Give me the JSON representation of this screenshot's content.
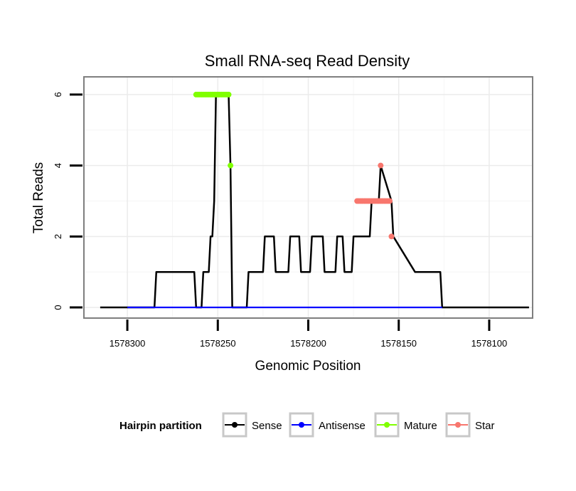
{
  "chart_data": {
    "type": "line",
    "title": "Small RNA-seq Read Density",
    "xlabel": "Genomic Position",
    "ylabel": "Total Reads",
    "x_reversed": true,
    "xlim": [
      1578324,
      1578076
    ],
    "ylim": [
      -0.3,
      6.5
    ],
    "x_ticks": [
      1578300,
      1578250,
      1578200,
      1578150,
      1578100
    ],
    "x_tick_labels": [
      "1578300",
      "1578250",
      "1578200",
      "1578150",
      "1578100"
    ],
    "y_ticks": [
      0,
      2,
      4,
      6
    ],
    "y_tick_labels": [
      "0",
      "2",
      "4",
      "6"
    ],
    "grid": true,
    "legend": {
      "title": "Hairpin partition",
      "position": "bottom",
      "entries": [
        "Sense",
        "Antisense",
        "Mature",
        "Star"
      ]
    },
    "series": [
      {
        "name": "Sense",
        "color": "#000000",
        "x": [
          1578315,
          1578285,
          1578284,
          1578263,
          1578262,
          1578259,
          1578258,
          1578255,
          1578254,
          1578253,
          1578252,
          1578251,
          1578244,
          1578243,
          1578242,
          1578241,
          1578234,
          1578233,
          1578225,
          1578224,
          1578219,
          1578218,
          1578211,
          1578210,
          1578205,
          1578204,
          1578199,
          1578198,
          1578192,
          1578191,
          1578185,
          1578184,
          1578181,
          1578180,
          1578176,
          1578175,
          1578166,
          1578165,
          1578161,
          1578160,
          1578154,
          1578153,
          1578141,
          1578140,
          1578127,
          1578126,
          1578078
        ],
        "y": [
          0,
          0,
          1,
          1,
          0,
          0,
          1,
          1,
          2,
          2,
          3,
          6,
          6,
          4,
          0,
          0,
          0,
          1,
          1,
          2,
          2,
          1,
          1,
          2,
          2,
          1,
          1,
          2,
          2,
          1,
          1,
          2,
          2,
          1,
          1,
          2,
          2,
          3,
          3,
          4,
          3,
          2,
          1,
          1,
          1,
          0,
          0
        ]
      },
      {
        "name": "Antisense",
        "color": "#0000ff",
        "x": [
          1578300,
          1578126
        ],
        "y": [
          0,
          0
        ]
      },
      {
        "name": "Mature",
        "color": "#80ff00",
        "x": [
          1578262,
          1578261,
          1578260,
          1578259,
          1578258,
          1578257,
          1578256,
          1578255,
          1578254,
          1578253,
          1578252,
          1578251,
          1578250,
          1578249,
          1578248,
          1578247,
          1578246,
          1578245,
          1578244,
          1578243
        ],
        "y": [
          6,
          6,
          6,
          6,
          6,
          6,
          6,
          6,
          6,
          6,
          6,
          6,
          6,
          6,
          6,
          6,
          6,
          6,
          6,
          4
        ]
      },
      {
        "name": "Star",
        "color": "#f8766d",
        "x": [
          1578173,
          1578172,
          1578171,
          1578170,
          1578169,
          1578168,
          1578167,
          1578166,
          1578165,
          1578164,
          1578163,
          1578162,
          1578161,
          1578160,
          1578159,
          1578158,
          1578157,
          1578156,
          1578155,
          1578154,
          1578160
        ],
        "y": [
          3,
          3,
          3,
          3,
          3,
          3,
          3,
          3,
          3,
          3,
          3,
          3,
          3,
          3,
          3,
          3,
          3,
          3,
          3,
          2,
          4
        ]
      }
    ]
  }
}
